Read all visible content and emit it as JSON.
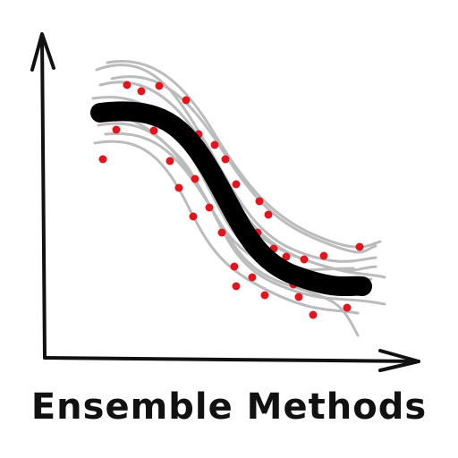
{
  "caption": "Ensemble Methods",
  "colors": {
    "axis": "#111111",
    "consensus_curve": "#000000",
    "member_curves": "#bbbbbb",
    "data_points": "#e0161e"
  },
  "icons": {
    "axes": "hand-drawn-axes-with-arrows",
    "member_curves": "many-thin-gray-sigmoid-curves",
    "consensus_curve": "thick-black-sigmoid-curve",
    "data_points": "red-scatter-dots"
  }
}
